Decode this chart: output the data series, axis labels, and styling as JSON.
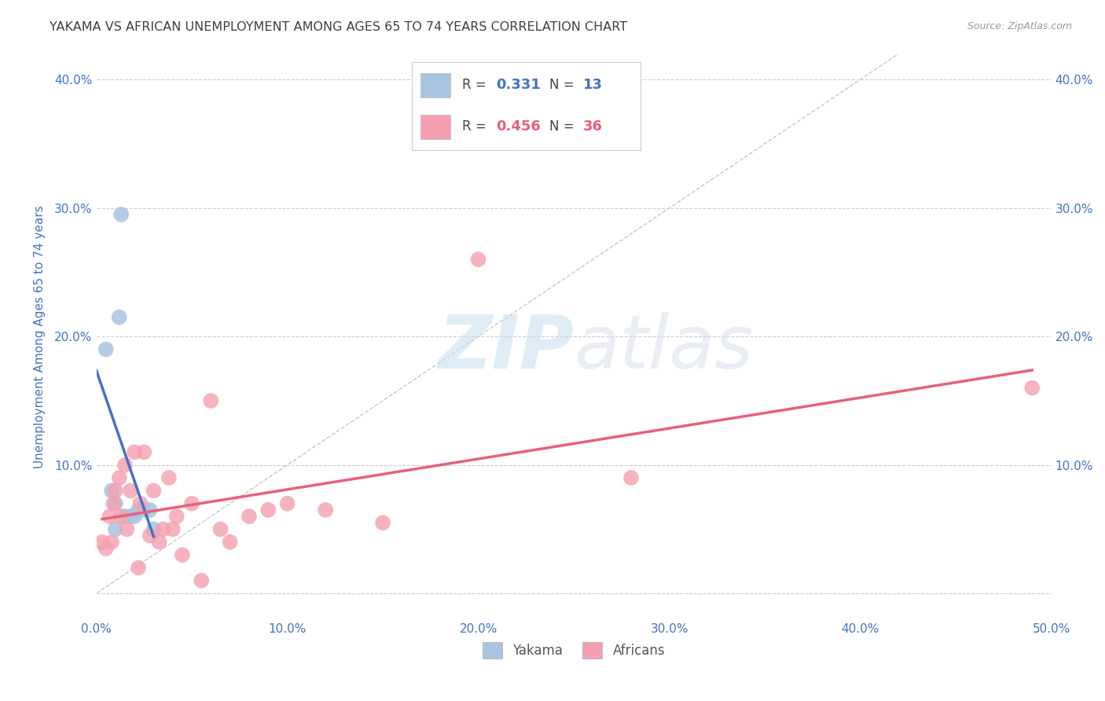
{
  "title": "YAKAMA VS AFRICAN UNEMPLOYMENT AMONG AGES 65 TO 74 YEARS CORRELATION CHART",
  "source": "Source: ZipAtlas.com",
  "ylabel": "Unemployment Among Ages 65 to 74 years",
  "xlim": [
    0.0,
    0.5
  ],
  "ylim": [
    -0.02,
    0.42
  ],
  "xticks": [
    0.0,
    0.1,
    0.2,
    0.3,
    0.4,
    0.5
  ],
  "xticklabels": [
    "0.0%",
    "10.0%",
    "20.0%",
    "30.0%",
    "40.0%",
    "50.0%"
  ],
  "yticks": [
    0.0,
    0.1,
    0.2,
    0.3,
    0.4
  ],
  "yticklabels": [
    "",
    "10.0%",
    "20.0%",
    "30.0%",
    "40.0%"
  ],
  "yakama_x": [
    0.005,
    0.008,
    0.01,
    0.01,
    0.012,
    0.013,
    0.015,
    0.018,
    0.02,
    0.022,
    0.025,
    0.028,
    0.03
  ],
  "yakama_y": [
    0.19,
    0.08,
    0.05,
    0.07,
    0.215,
    0.295,
    0.06,
    0.06,
    0.06,
    0.065,
    0.065,
    0.065,
    0.05
  ],
  "africans_x": [
    0.003,
    0.005,
    0.007,
    0.008,
    0.009,
    0.01,
    0.012,
    0.013,
    0.015,
    0.016,
    0.018,
    0.02,
    0.022,
    0.023,
    0.025,
    0.028,
    0.03,
    0.033,
    0.035,
    0.038,
    0.04,
    0.042,
    0.045,
    0.05,
    0.055,
    0.06,
    0.065,
    0.07,
    0.08,
    0.09,
    0.1,
    0.12,
    0.15,
    0.2,
    0.28,
    0.49
  ],
  "africans_y": [
    0.04,
    0.035,
    0.06,
    0.04,
    0.07,
    0.08,
    0.09,
    0.06,
    0.1,
    0.05,
    0.08,
    0.11,
    0.02,
    0.07,
    0.11,
    0.045,
    0.08,
    0.04,
    0.05,
    0.09,
    0.05,
    0.06,
    0.03,
    0.07,
    0.01,
    0.15,
    0.05,
    0.04,
    0.06,
    0.065,
    0.07,
    0.065,
    0.055,
    0.26,
    0.09,
    0.16
  ],
  "yakama_color": "#a8c4e0",
  "africans_color": "#f4a0b0",
  "yakama_line_color": "#4472c4",
  "africans_line_color": "#e8607a",
  "diagonal_color": "#c8c8c8",
  "R_yakama": "0.331",
  "N_yakama": "13",
  "R_africans": "0.456",
  "N_africans": "36",
  "legend_yakama_label": "Yakama",
  "legend_africans_label": "Africans",
  "watermark_zip": "ZIP",
  "watermark_atlas": "atlas",
  "background_color": "#ffffff",
  "grid_color": "#cccccc",
  "title_color": "#404040",
  "axis_label_color": "#4472c4",
  "tick_color": "#4472c4"
}
